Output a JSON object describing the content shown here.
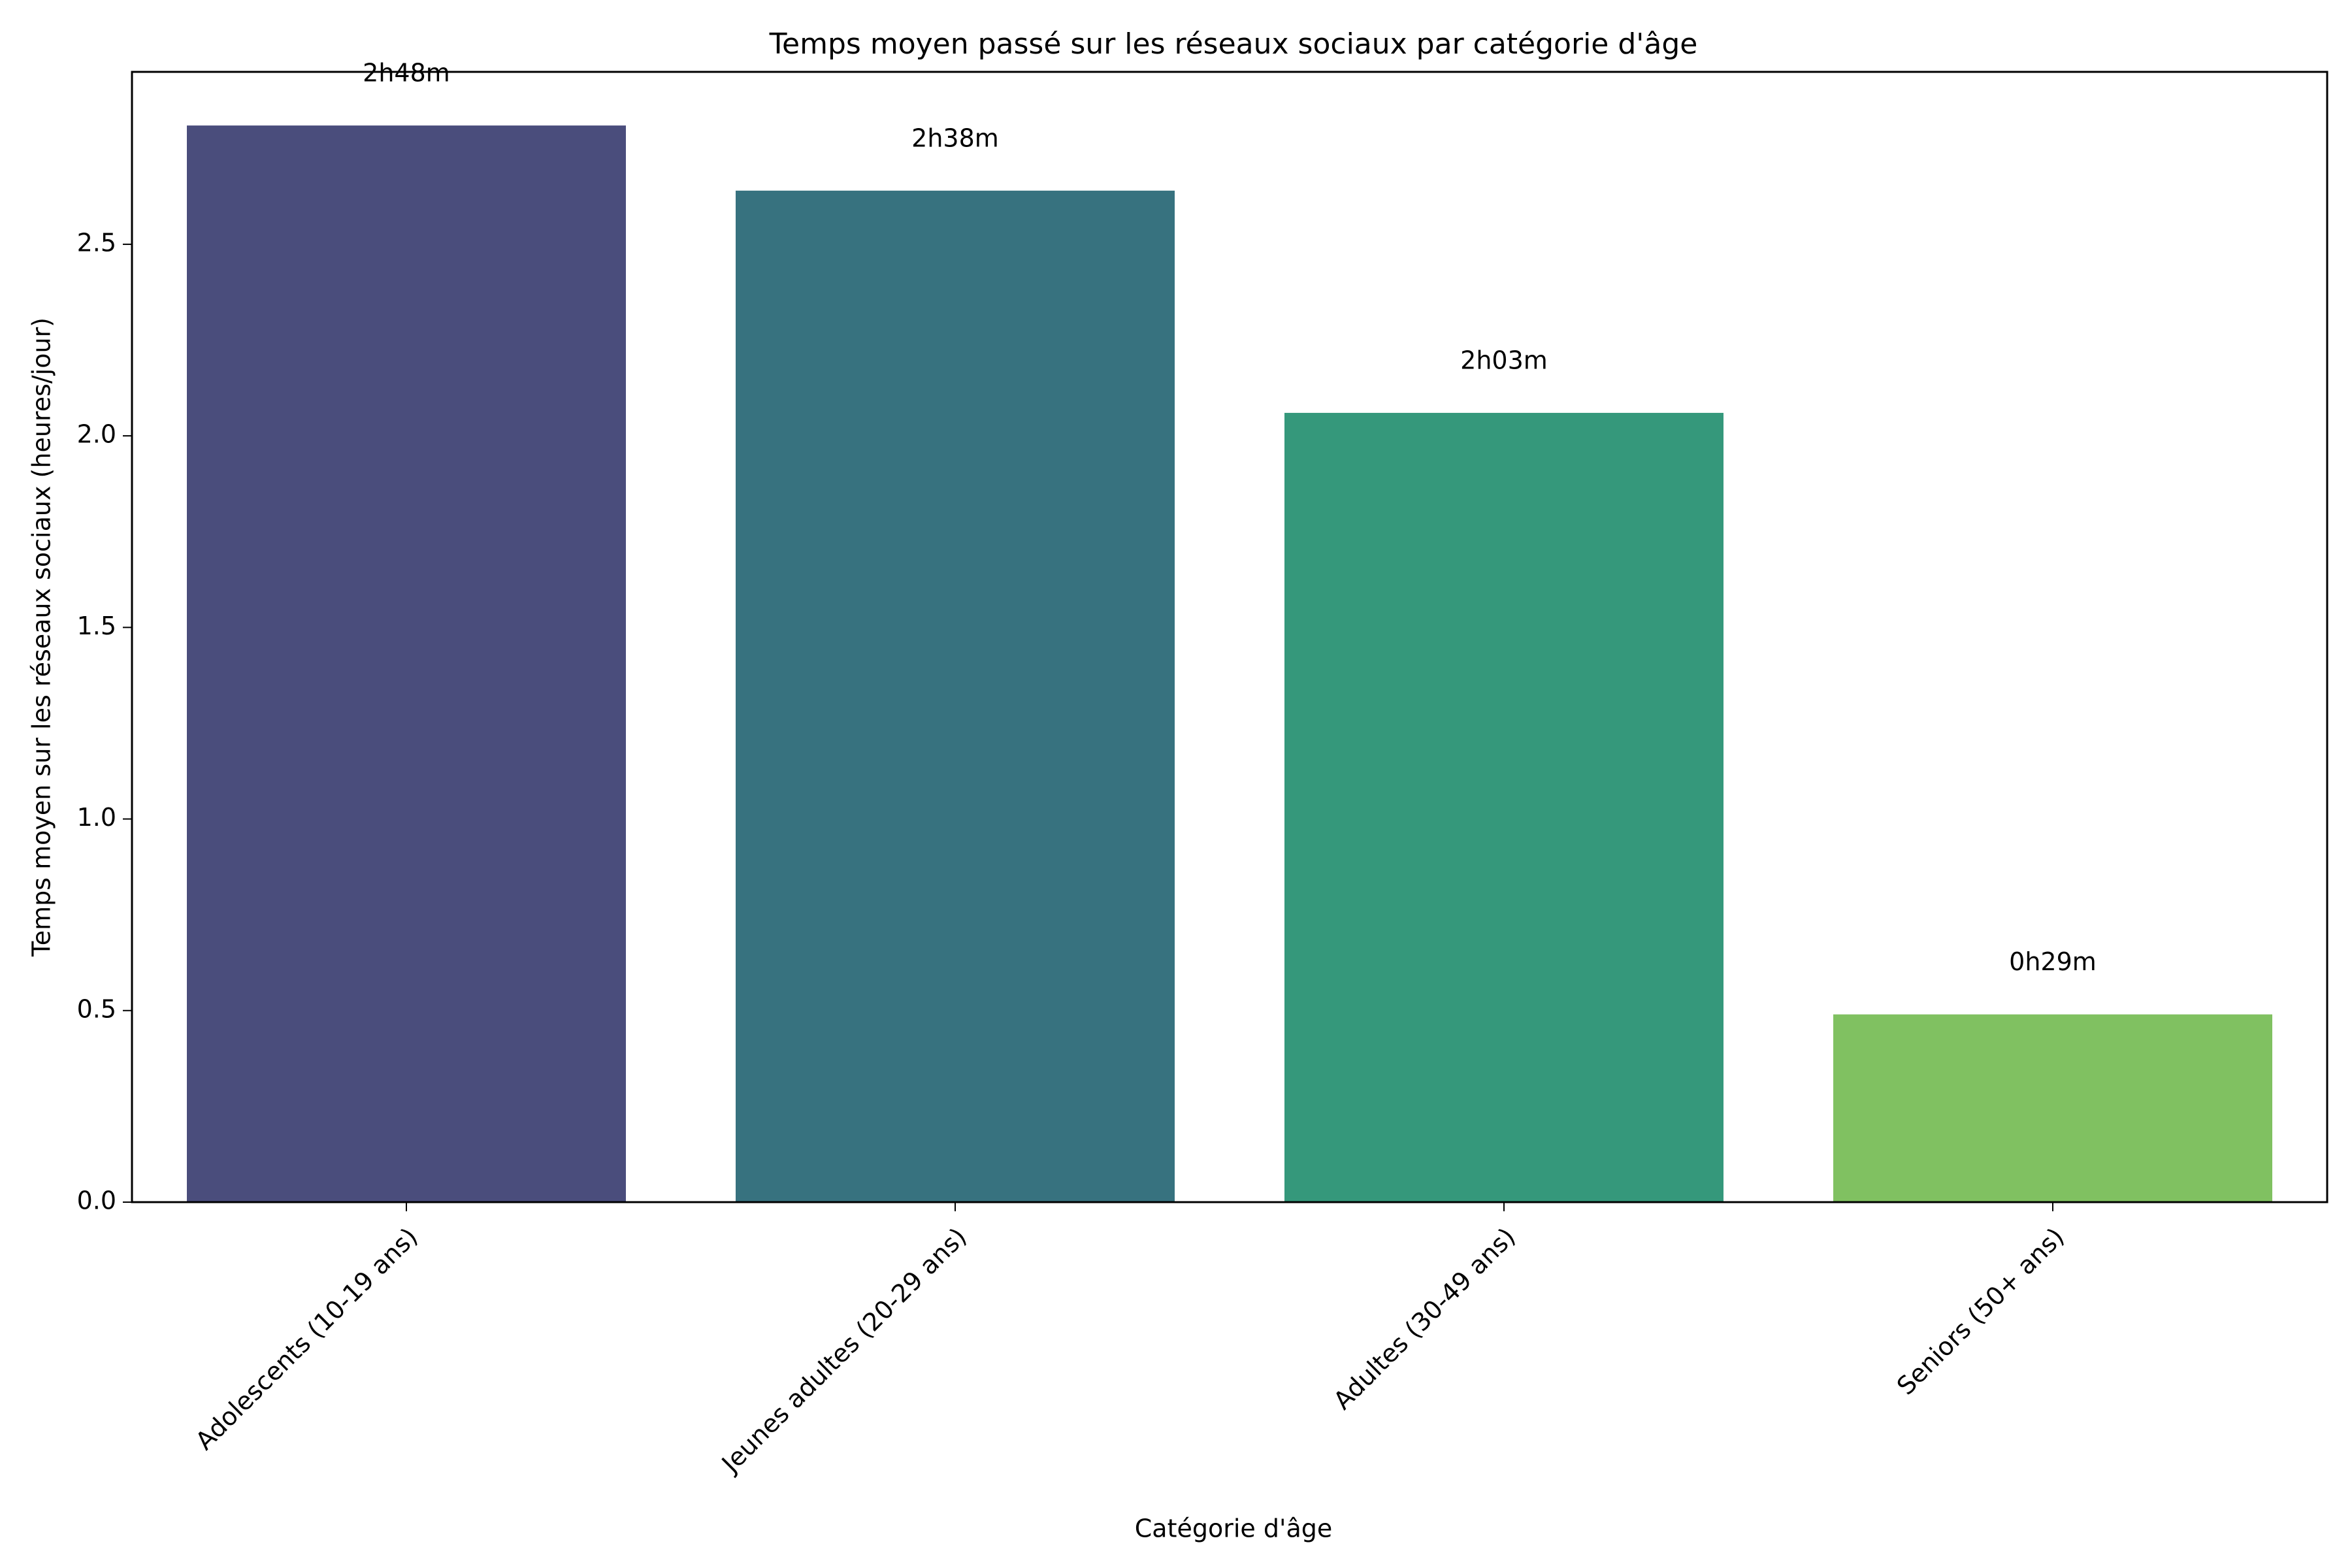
{
  "chart_data": {
    "type": "bar",
    "title": "Temps moyen passé sur les réseaux sociaux par catégorie d'âge",
    "xlabel": "Catégorie d'âge",
    "ylabel": "Temps moyen sur les réseaux sociaux (heures/jour)",
    "categories": [
      "Adolescents (10-19 ans)",
      "Jeunes adultes (20-29 ans)",
      "Adultes (30-49 ans)",
      "Seniors (50+ ans)"
    ],
    "values": [
      2.81,
      2.64,
      2.06,
      0.49
    ],
    "data_labels": [
      "2h48m",
      "2h38m",
      "2h03m",
      "0h29m"
    ],
    "colors": [
      "#4a4d7c",
      "#37727f",
      "#35987b",
      "#80c161"
    ],
    "ylim": [
      0,
      2.95
    ],
    "yticks": [
      0.0,
      0.5,
      1.0,
      1.5,
      2.0,
      2.5
    ],
    "ytick_labels": [
      "0.0",
      "0.5",
      "1.0",
      "1.5",
      "2.0",
      "2.5"
    ],
    "grid": false,
    "legend": "none"
  }
}
